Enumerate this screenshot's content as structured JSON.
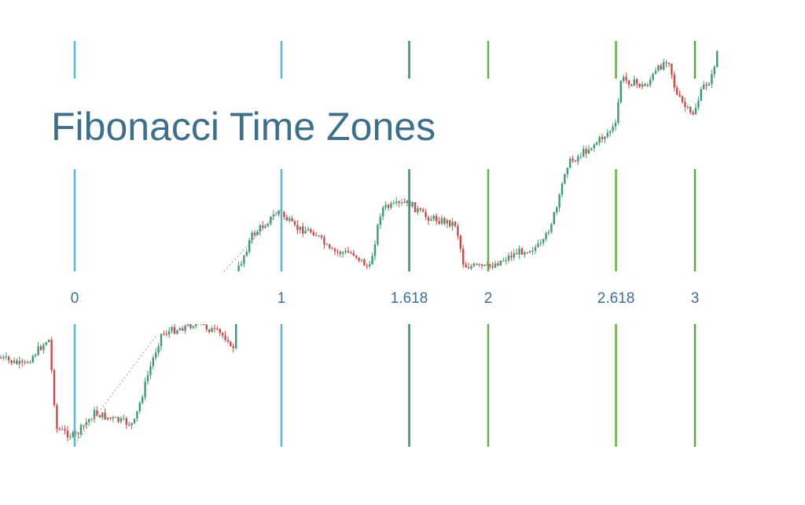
{
  "title": "Fibonacci Time Zones",
  "zones": [
    0,
    1,
    1.618,
    2,
    2.618,
    3
  ]
}
